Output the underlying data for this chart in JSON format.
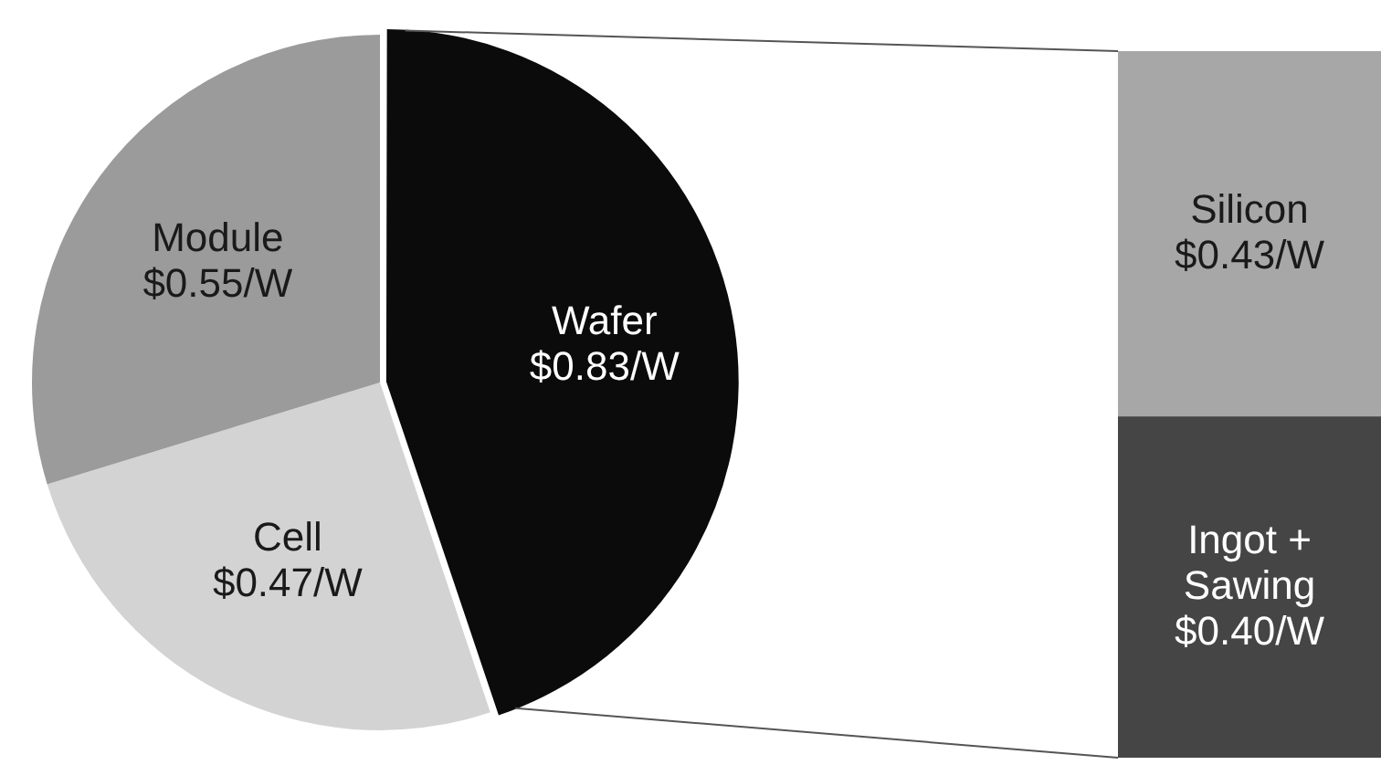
{
  "chart_data": [
    {
      "type": "pie",
      "categories": [
        "Wafer",
        "Cell",
        "Module"
      ],
      "values": [
        0.83,
        0.47,
        0.55
      ],
      "colors": [
        "#0b0b0b",
        "#d3d3d3",
        "#9b9b9b"
      ],
      "value_labels": [
        "$0.83/W",
        "$0.47/W",
        "$0.55/W"
      ],
      "legend": false
    },
    {
      "type": "bar",
      "stacked": true,
      "categories": [
        null
      ],
      "legend": false,
      "series": [
        {
          "name": "Ingot + Sawing",
          "color": "#454545",
          "values": [
            0.4
          ],
          "value_labels": [
            "$0.40/W"
          ]
        },
        {
          "name": "Silicon",
          "color": "#a7a7a7",
          "values": [
            0.43
          ],
          "value_labels": [
            "$0.43/W"
          ]
        }
      ]
    }
  ]
}
